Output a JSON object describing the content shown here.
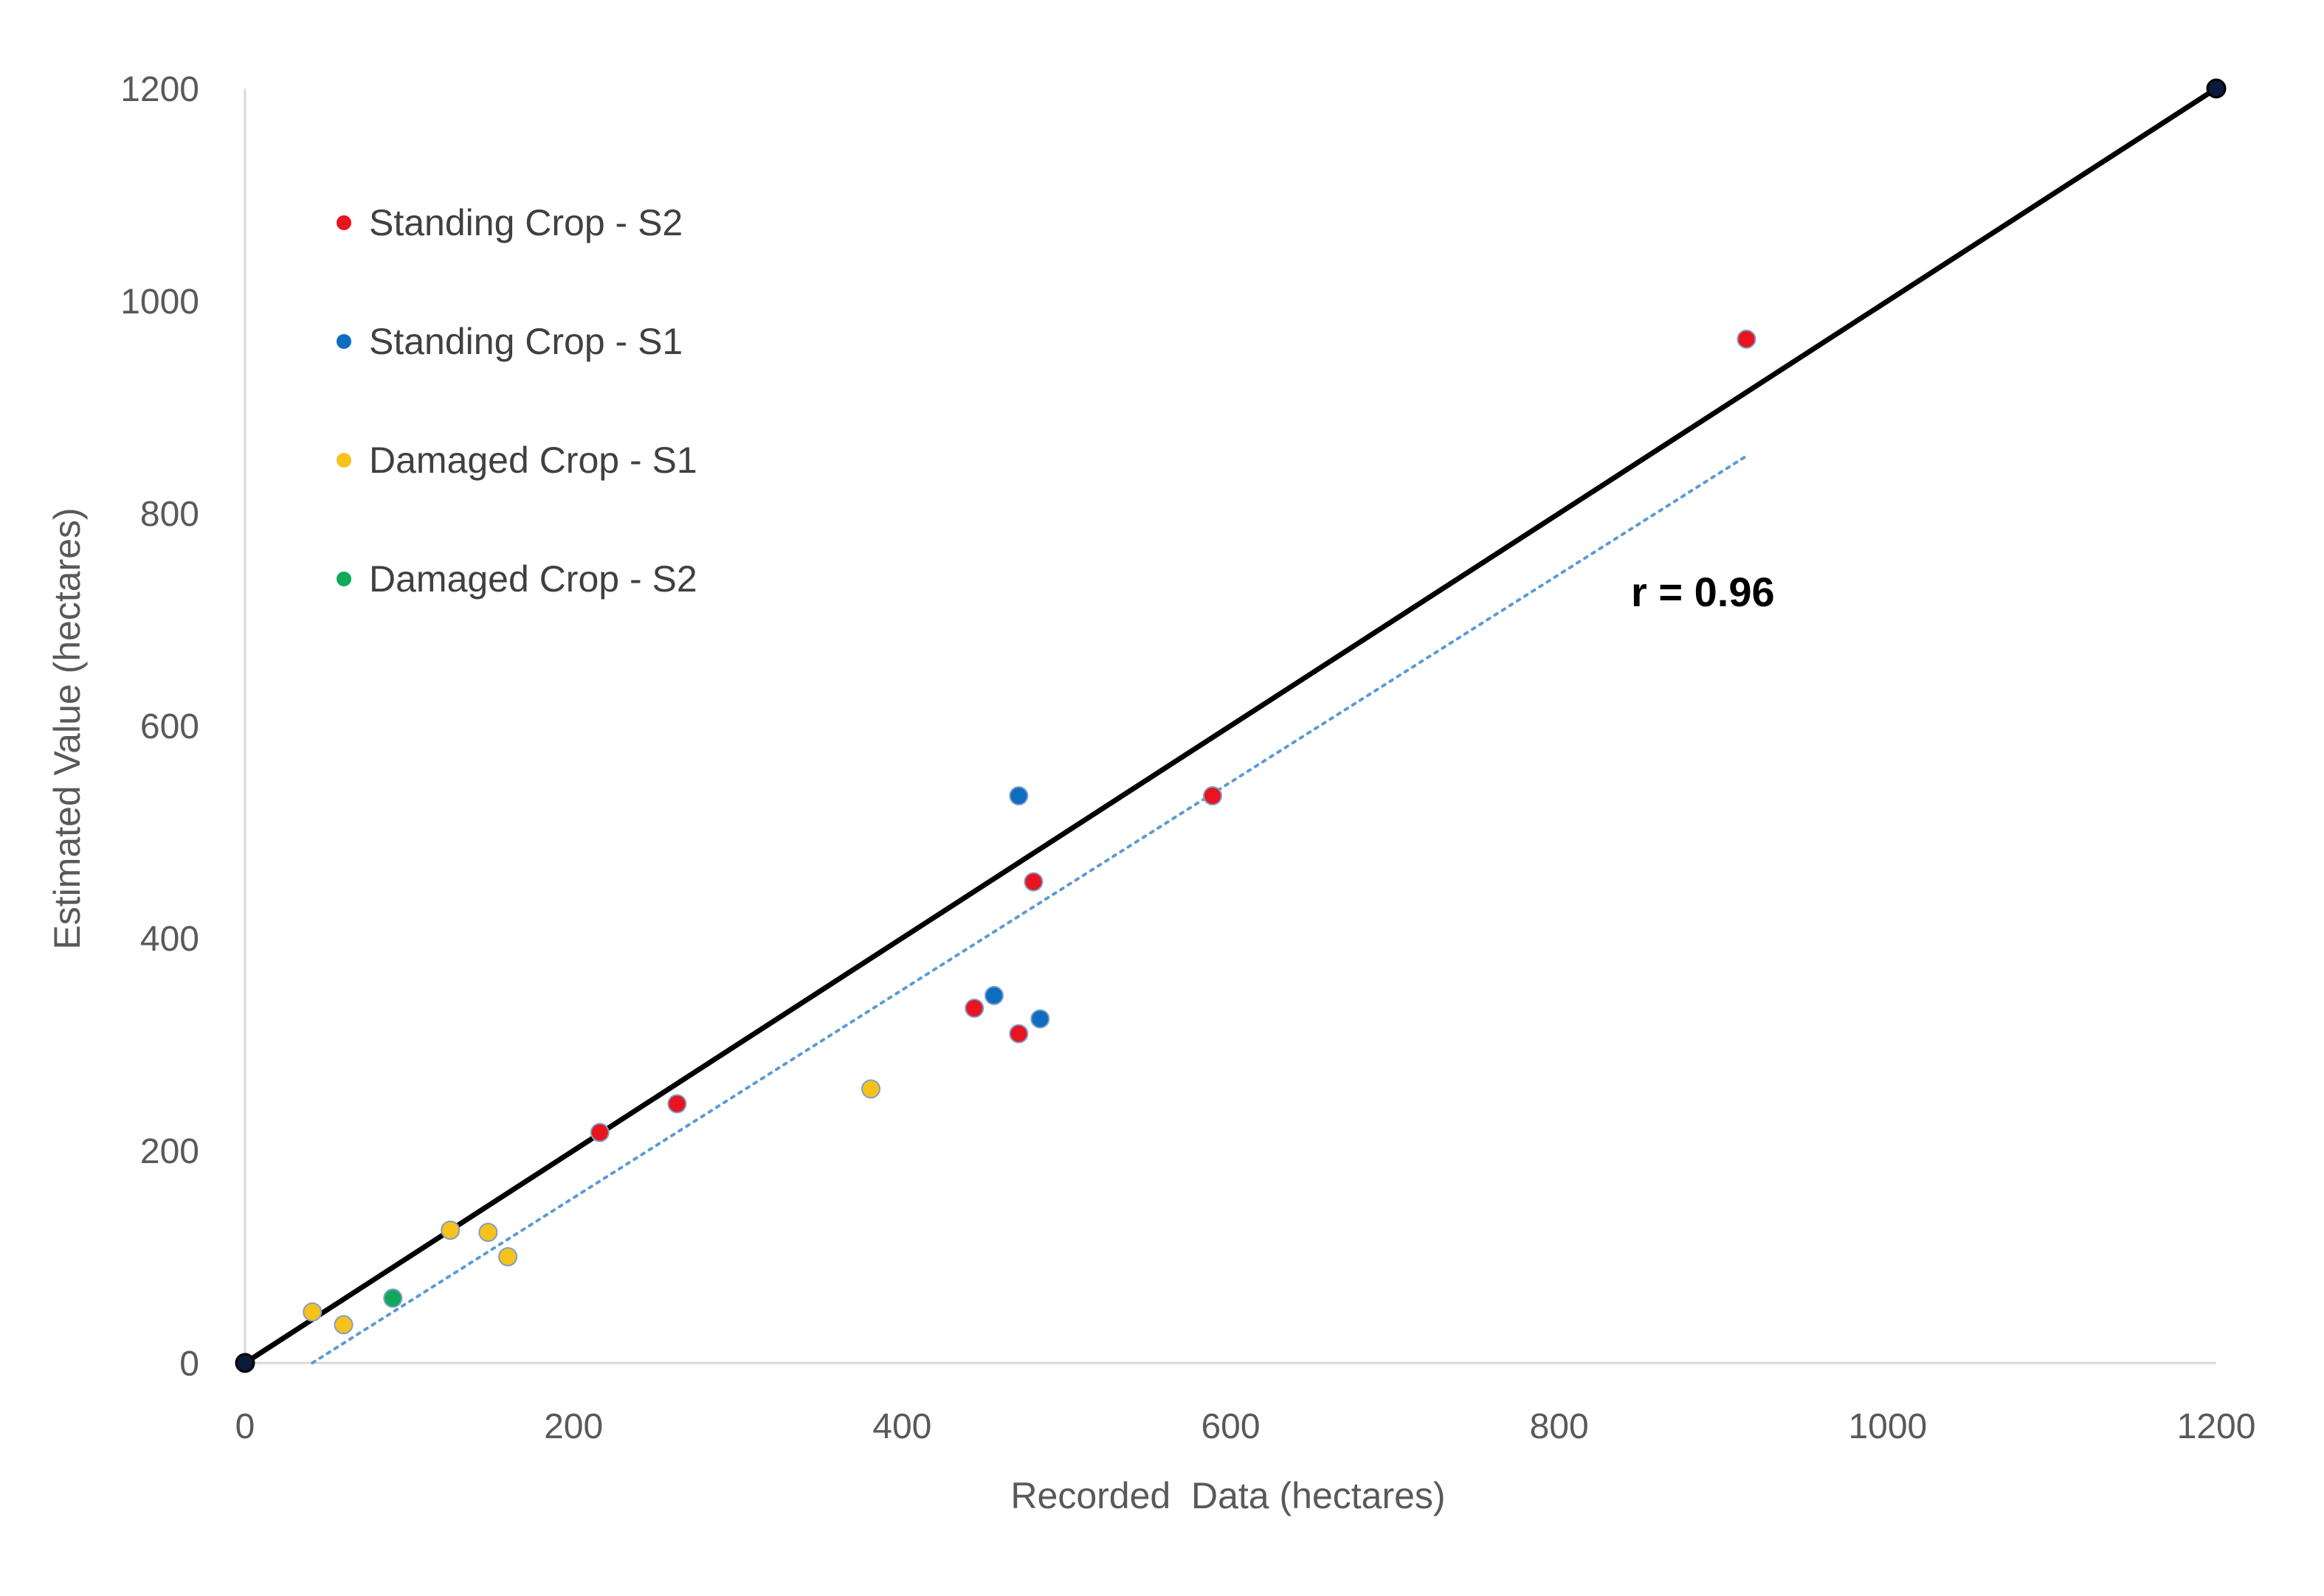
{
  "chart_data": {
    "type": "scatter",
    "title": "",
    "xlabel": "Recorded  Data (hectares)",
    "ylabel": "Estimated Value (hectares)",
    "xlim": [
      0,
      1200
    ],
    "ylim": [
      0,
      1200
    ],
    "xticks": [
      0,
      200,
      400,
      600,
      800,
      1000,
      1200
    ],
    "yticks": [
      0,
      200,
      400,
      600,
      800,
      1000,
      1200
    ],
    "grid": false,
    "legend_position": "top-left",
    "series": [
      {
        "name": "Standing Crop - S2",
        "color": "#e8141f",
        "points": [
          [
            216,
            217
          ],
          [
            263,
            244
          ],
          [
            444,
            334
          ],
          [
            471,
            310
          ],
          [
            480,
            453
          ],
          [
            589,
            534
          ],
          [
            914,
            964
          ]
        ]
      },
      {
        "name": "Standing Crop - S1",
        "color": "#0f6dc0",
        "points": [
          [
            471,
            534
          ],
          [
            456,
            346
          ],
          [
            484,
            324
          ]
        ]
      },
      {
        "name": "Damaged Crop - S1",
        "color": "#f7c21b",
        "points": [
          [
            41,
            48
          ],
          [
            60,
            36
          ],
          [
            125,
            125
          ],
          [
            148,
            123
          ],
          [
            160,
            100
          ],
          [
            381,
            258
          ]
        ]
      },
      {
        "name": "Damaged Crop - S2",
        "color": "#12a85a",
        "points": [
          [
            90,
            61
          ]
        ]
      }
    ],
    "reference_line": {
      "from": [
        0,
        0
      ],
      "to": [
        1200,
        1200
      ],
      "color": "#000000"
    },
    "trend_line": {
      "from": [
        41,
        0
      ],
      "to": [
        914,
        854
      ],
      "color": "#5b9bd5",
      "style": "dotted"
    },
    "annotation": "r = 0.96"
  }
}
